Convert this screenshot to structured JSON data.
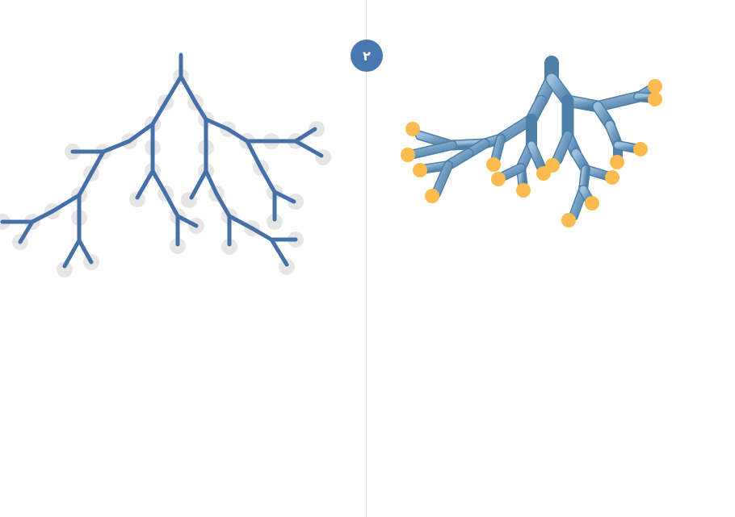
{
  "badge": {
    "label": "٢",
    "color": "#4a78b0"
  },
  "colors": {
    "skeleton_line": "#4570a8",
    "skeleton_node": "#e6e6e6",
    "tube_dark": "#4e7fa8",
    "tube_mid": "#6f9bc0",
    "tube_light": "#9dc0dd",
    "leaf_node": "#fbbb4f",
    "divider": "#e6e6e6"
  },
  "left_tree": {
    "style": "flat-skeleton",
    "icon": "branching-tree-skeleton"
  },
  "right_tree": {
    "style": "3d-tubes",
    "icon": "branching-tree-tubes"
  }
}
